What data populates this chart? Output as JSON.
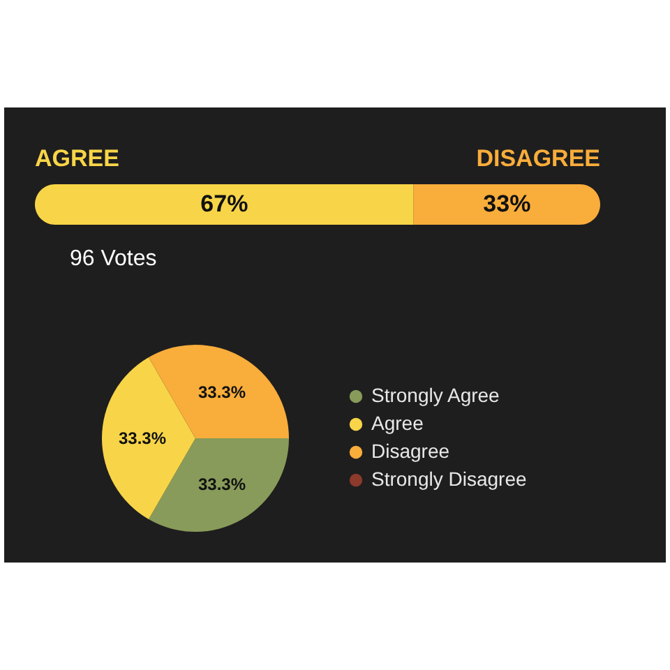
{
  "chart_data": [
    {
      "type": "bar",
      "orientation": "horizontal",
      "stacked": true,
      "categories": [
        null
      ],
      "xlim": [
        0,
        100
      ],
      "tick_labels": false,
      "series": [
        {
          "name": "AGREE",
          "color": "#f8d548",
          "values": [
            67
          ],
          "value_labels": [
            "67%"
          ]
        },
        {
          "name": "DISAGREE",
          "color": "#f9ad3b",
          "values": [
            33
          ],
          "value_labels": [
            "33%"
          ]
        }
      ],
      "annotations": [
        "96 Votes"
      ]
    },
    {
      "type": "pie",
      "categories": [
        "Strongly Agree",
        "Agree",
        "Disagree",
        "Strongly Disagree"
      ],
      "values": [
        33.3,
        33.3,
        33.3,
        0
      ],
      "colors": [
        "#889b5a",
        "#f8d548",
        "#f9ad3b",
        "#8b3a2b"
      ],
      "value_labels": [
        "33.3%",
        "33.3%",
        "33.3%",
        null
      ],
      "legend": "right"
    }
  ]
}
